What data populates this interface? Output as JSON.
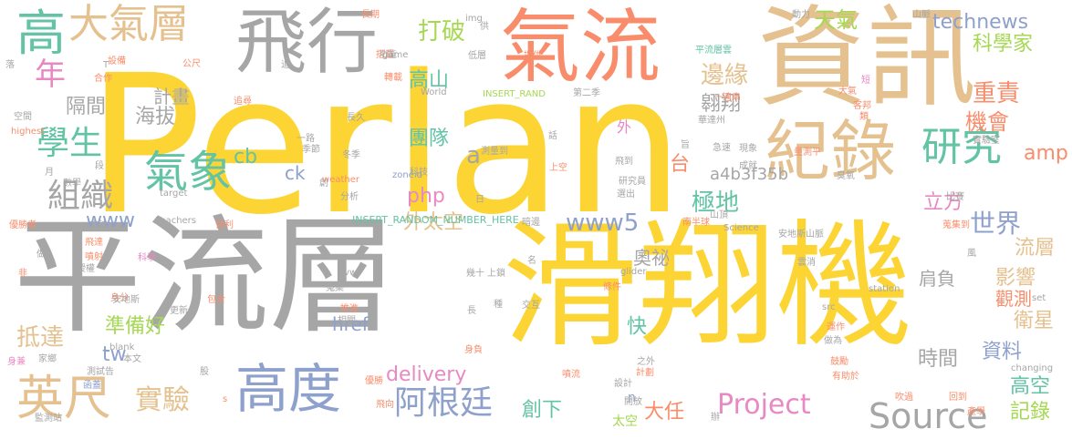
{
  "palette": {
    "yellow": "#fcd535",
    "gray": "#a6a6a6",
    "tan": "#e4c18f",
    "orange": "#f98d6b",
    "green": "#62c3a5",
    "blue": "#8ea0cc",
    "pink": "#e78ac3",
    "lime": "#a6d854",
    "lightgray": "#c8c8c8"
  },
  "words": [
    "Perlan",
    "平流層",
    "滑翔機",
    "資訊",
    "氣流",
    "飛行",
    "紀錄",
    "大氣層",
    "高",
    "年",
    "氣象",
    "研究",
    "學生",
    "組織",
    "高度",
    "英尺",
    "實驗",
    "阿根廷",
    "Project",
    "Source",
    "technews",
    "www5",
    "www",
    "打破",
    "天氣",
    "邊緣",
    "翱翔",
    "重責",
    "科學家",
    "機會",
    "amp",
    "世界",
    "立方",
    "極地",
    "台",
    "外太空",
    "php",
    "團隊",
    "計畫",
    "海拔",
    "隔間",
    "高山",
    "cb",
    "tw",
    "delivery",
    "準備好",
    "抵達",
    "創下",
    "大任",
    "快",
    "時間",
    "影響",
    "流層",
    "觀測",
    "衛星",
    "資料",
    "高空",
    "記錄",
    "肩負",
    "奧祕",
    "a",
    "ck",
    "href",
    "a4b3f35b",
    "INSERT_RANDOM_NUMBER_HERE",
    "n",
    "太空",
    "外",
    "長期",
    "搭載",
    "轉載",
    "設備",
    "合作",
    "公尺",
    "空間",
    "highest",
    "功能",
    "低層",
    "提供",
    "平流層雲",
    "短",
    "大氣",
    "客邦",
    "類",
    "一連串",
    "科學",
    "身分",
    "授權",
    "噴射",
    "飛達",
    "做",
    "非",
    "家鄉",
    "本文",
    "測試告",
    "監測站",
    "優勝",
    "飛向",
    "產學",
    "回到",
    "吹過",
    "有助於",
    "鼓勵",
    "噴流",
    "之外",
    "計劃",
    "設計",
    "開放",
    "身兼",
    "函蓋",
    "股",
    "s",
    "_blank",
    "src",
    "station",
    "glider",
    "avw",
    "Teachers",
    "Science",
    "weather",
    "zoneid",
    "target",
    "game",
    "img",
    "World",
    "set",
    "changing",
    "成就",
    "現象",
    "測量到",
    "上空",
    "研究員",
    "選出",
    "飛到",
    "條件",
    "交互",
    "運作",
    "做為",
    "雲消",
    "安地斯",
    "安地斯山脈",
    "南半球",
    "山頂",
    "山脈",
    "實驗室",
    "比賽",
    "蒐集",
    "蒐集到",
    "冬季",
    "季節",
    "分析",
    "方法",
    "優勝者",
    "營利",
    "推進",
    "相關",
    "身負",
    "幾十",
    "上鎖",
    "名",
    "一路",
    "創",
    "科技",
    "暗邊",
    "華達州",
    "急速",
    "量測平",
    "旨",
    "供",
    "落",
    "月",
    "數學",
    "段",
    "包含",
    "更新",
    "風",
    "辦",
    "動力",
    "追尋",
    "第二季",
    "話",
    "種",
    "INSERT_RAND",
    "日",
    "T",
    "追",
    "長久",
    "長",
    "臭氧"
  ]
}
